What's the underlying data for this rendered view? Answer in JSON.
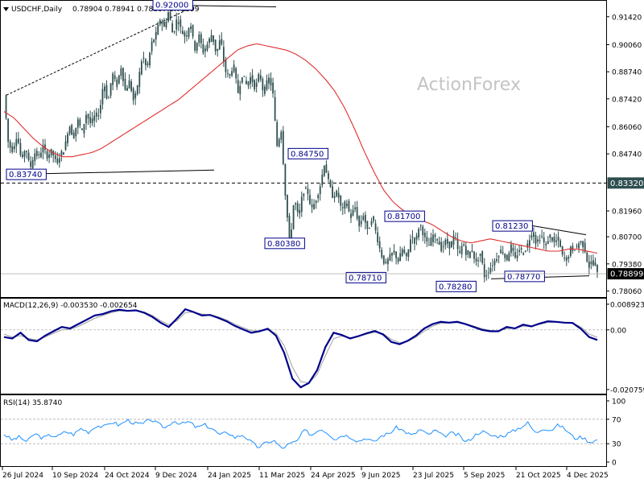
{
  "colors": {
    "candle": "#2f4f4f",
    "ma": "#e03030",
    "macd": "#00008b",
    "signal": "#a0a0a0",
    "rsi": "#1e90ff",
    "trendline": "#000000",
    "label_border": "#00008b",
    "current_box": "#000000",
    "level_box": "#2f4f4f"
  },
  "header": {
    "symbol": "USDCHF,Daily",
    "ohlc": "0.78904 0.78941 0.78807 0.78899"
  },
  "watermark": "ActionForex",
  "chart_data": [
    {
      "type": "candlestick",
      "name": "price",
      "ylim": [
        0.78,
        0.92
      ],
      "y_ticks": [
        "0.91420",
        "0.90060",
        "0.88740",
        "0.87420",
        "0.86060",
        "0.84740",
        "0.81960",
        "0.80700",
        "0.79380",
        "0.78060"
      ],
      "y_tick_values": [
        0.9142,
        0.9006,
        0.8874,
        0.8742,
        0.8606,
        0.8474,
        0.8196,
        0.807,
        0.7938,
        0.7806
      ],
      "x_labels": [
        "26 Jul 2024",
        "10 Sep 2024",
        "24 Oct 2024",
        "9 Dec 2024",
        "24 Jan 2025",
        "11 Mar 2025",
        "24 Apr 2025",
        "9 Jun 2025",
        "23 Jul 2025",
        "5 Sep 2025",
        "21 Oct 2025",
        "4 Dec 2025"
      ],
      "close_path": [
        0.876,
        0.852,
        0.849,
        0.857,
        0.844,
        0.851,
        0.84,
        0.848,
        0.846,
        0.851,
        0.846,
        0.849,
        0.843,
        0.847,
        0.85,
        0.862,
        0.855,
        0.864,
        0.858,
        0.867,
        0.862,
        0.866,
        0.867,
        0.883,
        0.872,
        0.887,
        0.88,
        0.89,
        0.878,
        0.883,
        0.872,
        0.883,
        0.896,
        0.888,
        0.901,
        0.905,
        0.913,
        0.909,
        0.917,
        0.905,
        0.914,
        0.907,
        0.904,
        0.912,
        0.898,
        0.905,
        0.897,
        0.901,
        0.906,
        0.896,
        0.904,
        0.888,
        0.885,
        0.891,
        0.877,
        0.886,
        0.881,
        0.885,
        0.879,
        0.887,
        0.876,
        0.885,
        0.879,
        0.851,
        0.859,
        0.826,
        0.803,
        0.826,
        0.816,
        0.829,
        0.83,
        0.82,
        0.825,
        0.832,
        0.843,
        0.833,
        0.826,
        0.829,
        0.819,
        0.825,
        0.816,
        0.822,
        0.812,
        0.818,
        0.809,
        0.817,
        0.808,
        0.799,
        0.793,
        0.797,
        0.8,
        0.795,
        0.801,
        0.796,
        0.808,
        0.804,
        0.814,
        0.807,
        0.802,
        0.808,
        0.806,
        0.801,
        0.805,
        0.802,
        0.808,
        0.798,
        0.804,
        0.797,
        0.801,
        0.794,
        0.799,
        0.787,
        0.791,
        0.794,
        0.798,
        0.801,
        0.795,
        0.803,
        0.796,
        0.801,
        0.799,
        0.804,
        0.81,
        0.803,
        0.808,
        0.802,
        0.808,
        0.804,
        0.806,
        0.797,
        0.796,
        0.802,
        0.801,
        0.805,
        0.802,
        0.792,
        0.796,
        0.789
      ],
      "ma_path": [
        0.868,
        0.865,
        0.86,
        0.855,
        0.851,
        0.848,
        0.846,
        0.846,
        0.847,
        0.848,
        0.85,
        0.853,
        0.856,
        0.859,
        0.862,
        0.865,
        0.868,
        0.871,
        0.874,
        0.878,
        0.882,
        0.886,
        0.89,
        0.894,
        0.898,
        0.9,
        0.901,
        0.9,
        0.899,
        0.898,
        0.896,
        0.893,
        0.889,
        0.884,
        0.878,
        0.87,
        0.86,
        0.849,
        0.839,
        0.83,
        0.824,
        0.82,
        0.817,
        0.815,
        0.813,
        0.81,
        0.807,
        0.805,
        0.804,
        0.805,
        0.806,
        0.805,
        0.804,
        0.803,
        0.802,
        0.801,
        0.8,
        0.8,
        0.801,
        0.801,
        0.8,
        0.799
      ],
      "levels": [
        {
          "label": "0.92000",
          "value": 0.92
        },
        {
          "label": "0.83740",
          "value": 0.8374
        },
        {
          "label": "0.84750",
          "value": 0.8475
        },
        {
          "label": "0.80380",
          "value": 0.8038
        },
        {
          "label": "0.81700",
          "value": 0.817
        },
        {
          "label": "0.78710",
          "value": 0.7871
        },
        {
          "label": "0.78280",
          "value": 0.7828
        },
        {
          "label": "0.81230",
          "value": 0.8123
        },
        {
          "label": "0.78770",
          "value": 0.7877
        }
      ],
      "horizontal_level": {
        "label": "0.83320",
        "value": 0.8332
      },
      "current_price": {
        "label": "0.78899",
        "value": 0.78899
      }
    },
    {
      "type": "line",
      "name": "macd",
      "title": "MACD(12,26,9) -0.003530 -0.002654",
      "ylim": [
        -0.0208,
        0.0089
      ],
      "y_ticks": [
        "0.008923",
        "0.00",
        "-0.020759"
      ],
      "y_tick_values": [
        0.008923,
        0.0,
        -0.020759
      ],
      "series": [
        {
          "values": [
            -0.0025,
            -0.003,
            -0.001,
            -0.0035,
            -0.004,
            -0.002,
            -0.0005,
            0.001,
            0.0005,
            0.002,
            0.0035,
            0.005,
            0.0055,
            0.0065,
            0.007,
            0.0066,
            0.0068,
            0.006,
            0.0045,
            0.0025,
            0.001,
            0.004,
            0.0072,
            0.0062,
            0.005,
            0.0052,
            0.0042,
            0.003,
            0.0014,
            0.0002,
            -0.001,
            -0.0005,
            0.0004,
            -0.002,
            -0.008,
            -0.017,
            -0.02,
            -0.0185,
            -0.014,
            -0.006,
            -0.001,
            -0.0018,
            -0.003,
            -0.0022,
            -0.0012,
            -0.0004,
            -0.0016,
            -0.0042,
            -0.005,
            -0.0038,
            -0.002,
            0.0005,
            0.002,
            0.0028,
            0.0025,
            0.0028,
            0.002,
            0.001,
            0.0,
            -0.0005,
            -0.0005,
            0.001,
            0.0005,
            0.0018,
            0.0012,
            0.0022,
            0.003,
            0.0028,
            0.0025,
            0.0024,
            0.0004,
            -0.0025,
            -0.0035
          ]
        },
        {
          "values": [
            -0.0015,
            -0.0025,
            -0.002,
            -0.003,
            -0.0035,
            -0.0025,
            -0.0012,
            0.0,
            0.0002,
            0.0012,
            0.0026,
            0.004,
            0.005,
            0.006,
            0.0066,
            0.0066,
            0.0066,
            0.0062,
            0.005,
            0.0032,
            0.0018,
            0.0032,
            0.006,
            0.0062,
            0.0055,
            0.0052,
            0.0045,
            0.0035,
            0.002,
            0.0008,
            -0.0003,
            -0.0004,
            0.0,
            -0.0012,
            -0.0055,
            -0.013,
            -0.018,
            -0.0185,
            -0.0155,
            -0.009,
            -0.003,
            -0.0022,
            -0.0027,
            -0.0023,
            -0.0015,
            -0.0008,
            -0.0013,
            -0.0033,
            -0.0045,
            -0.004,
            -0.0025,
            -0.0005,
            0.0013,
            0.0023,
            0.0024,
            0.0025,
            0.0021,
            0.0013,
            0.0004,
            -0.0002,
            -0.0004,
            0.0005,
            0.0005,
            0.0013,
            0.0012,
            0.0019,
            0.0026,
            0.0027,
            0.0025,
            0.0024,
            0.001,
            -0.0015,
            -0.0026
          ]
        }
      ]
    },
    {
      "type": "line",
      "name": "rsi",
      "title": "RSI(14) 35.8740",
      "ylim": [
        0,
        100
      ],
      "y_ticks": [
        "100",
        "70",
        "30",
        "0"
      ],
      "y_tick_values": [
        100,
        70,
        30,
        0
      ],
      "series": [
        {
          "values": [
            46,
            36,
            41,
            33,
            47,
            39,
            44,
            42,
            50,
            45,
            55,
            49,
            60,
            57,
            66,
            60,
            69,
            63,
            62,
            70,
            62,
            56,
            68,
            62,
            66,
            56,
            61,
            55,
            44,
            49,
            40,
            45,
            33,
            24,
            31,
            36,
            22,
            29,
            34,
            52,
            44,
            55,
            48,
            37,
            45,
            41,
            34,
            40,
            32,
            43,
            47,
            57,
            50,
            43,
            54,
            44,
            52,
            42,
            47,
            44,
            32,
            43,
            51,
            44,
            42,
            44,
            50,
            57,
            64,
            47,
            56,
            52,
            61,
            52,
            39,
            41,
            33,
            36
          ]
        }
      ]
    }
  ]
}
